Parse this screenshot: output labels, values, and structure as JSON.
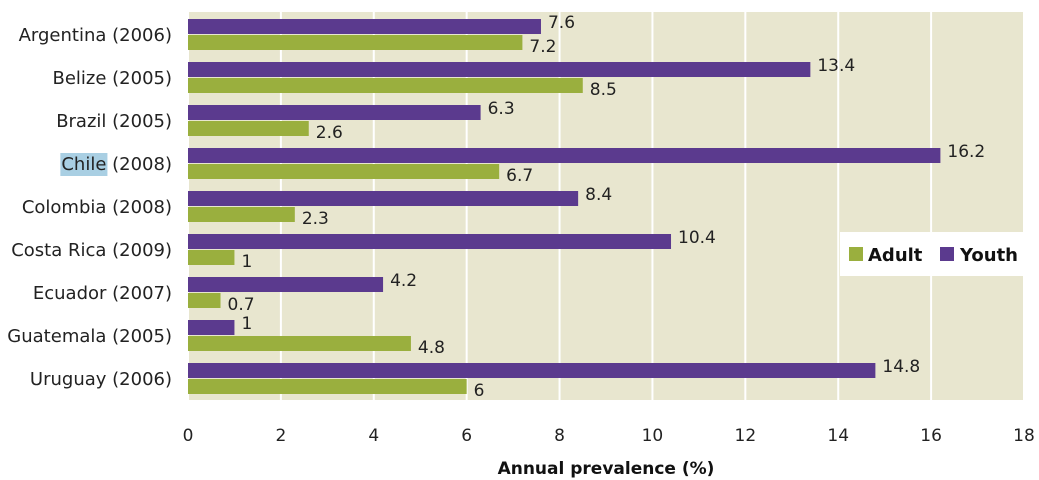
{
  "chart_data": {
    "type": "bar",
    "orientation": "horizontal",
    "categories": [
      "Argentina (2006)",
      "Belize (2005)",
      "Brazil (2005)",
      "Chile (2008)",
      "Colombia (2008)",
      "Costa Rica (2009)",
      "Ecuador (2007)",
      "Guatemala (2005)",
      "Uruguay (2006)"
    ],
    "series": [
      {
        "name": "Youth",
        "color": "#5b3a8e",
        "values": [
          7.6,
          13.4,
          6.3,
          16.2,
          8.4,
          10.4,
          4.2,
          1,
          14.8
        ],
        "labels": [
          "7.6",
          "13.4",
          "6.3",
          "16.2",
          "8.4",
          "10.4",
          "4.2",
          "1",
          "14.8"
        ]
      },
      {
        "name": "Adult",
        "color": "#9aaf3e",
        "values": [
          7.2,
          8.5,
          2.6,
          6.7,
          2.3,
          1,
          0.7,
          4.8,
          6
        ],
        "labels": [
          "7.2",
          "8.5",
          "2.6",
          "6.7",
          "2.3",
          "1",
          "0.7",
          "4.8",
          "6"
        ]
      }
    ],
    "legend_order": [
      "Adult",
      "Youth"
    ],
    "xlabel": "Annual prevalence (%)",
    "ylabel": "",
    "xlim": [
      0,
      18
    ],
    "xticks": [
      0,
      2,
      4,
      6,
      8,
      10,
      12,
      14,
      16,
      18
    ],
    "highlighted_category": "Chile",
    "grid": true,
    "legend_position": "right",
    "plot_background": "#e8e6cf",
    "highlight_color": "#a9cfe3"
  }
}
